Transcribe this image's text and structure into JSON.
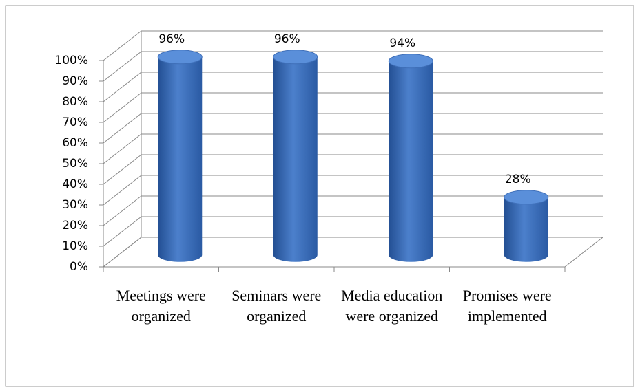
{
  "chart_data": {
    "type": "bar3d",
    "categories": [
      "Meetings were organized",
      "Seminars were organized",
      "Media education were organized",
      "Promises were implemented"
    ],
    "values": [
      96,
      96,
      94,
      28
    ],
    "value_labels": [
      "96%",
      "96%",
      "94%",
      "28%"
    ],
    "color": "#3a6bb8",
    "ylim": [
      0,
      100
    ],
    "yticks": [
      {
        "value": 0,
        "label": "0%"
      },
      {
        "value": 10,
        "label": "10%"
      },
      {
        "value": 20,
        "label": "20%"
      },
      {
        "value": 30,
        "label": "30%"
      },
      {
        "value": 40,
        "label": "40%"
      },
      {
        "value": 50,
        "label": "50%"
      },
      {
        "value": 60,
        "label": "60%"
      },
      {
        "value": 70,
        "label": "70%"
      },
      {
        "value": 80,
        "label": "80%"
      },
      {
        "value": 90,
        "label": "90%"
      },
      {
        "value": 100,
        "label": "100%"
      }
    ],
    "grid": true
  }
}
